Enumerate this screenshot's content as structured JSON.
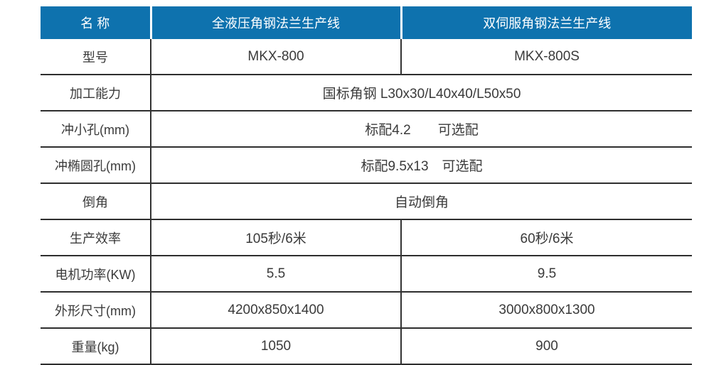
{
  "colors": {
    "header_bg": "#0e72ae",
    "header_text": "#ffffff",
    "body_text": "#3a3a3a",
    "grid_line": "#2e2e2e",
    "page_bg": "#ffffff"
  },
  "table": {
    "header": {
      "columns": [
        "名 称",
        "全液压角钢法兰生产线",
        "双伺服角钢法兰生产线"
      ]
    },
    "rows": [
      {
        "label": "型号",
        "values": [
          "MKX-800",
          "MKX-800S"
        ]
      },
      {
        "label": "加工能力",
        "values": [
          "国标角钢 L30x30/L40x40/L50x50"
        ]
      },
      {
        "label": "冲小孔(mm)",
        "values": [
          "标配4.2　　可选配"
        ]
      },
      {
        "label": "冲椭圆孔(mm)",
        "values": [
          "标配9.5x13　可选配"
        ]
      },
      {
        "label": "倒角",
        "values": [
          "自动倒角"
        ]
      },
      {
        "label": "生产效率",
        "values": [
          "105秒/6米",
          "60秒/6米"
        ]
      },
      {
        "label": "电机功率(KW)",
        "values": [
          "5.5",
          "9.5"
        ]
      },
      {
        "label": "外形尺寸(mm)",
        "values": [
          "4200x850x1400",
          "3000x800x1300"
        ]
      },
      {
        "label": "重量(kg)",
        "values": [
          "1050",
          "900"
        ]
      }
    ]
  }
}
